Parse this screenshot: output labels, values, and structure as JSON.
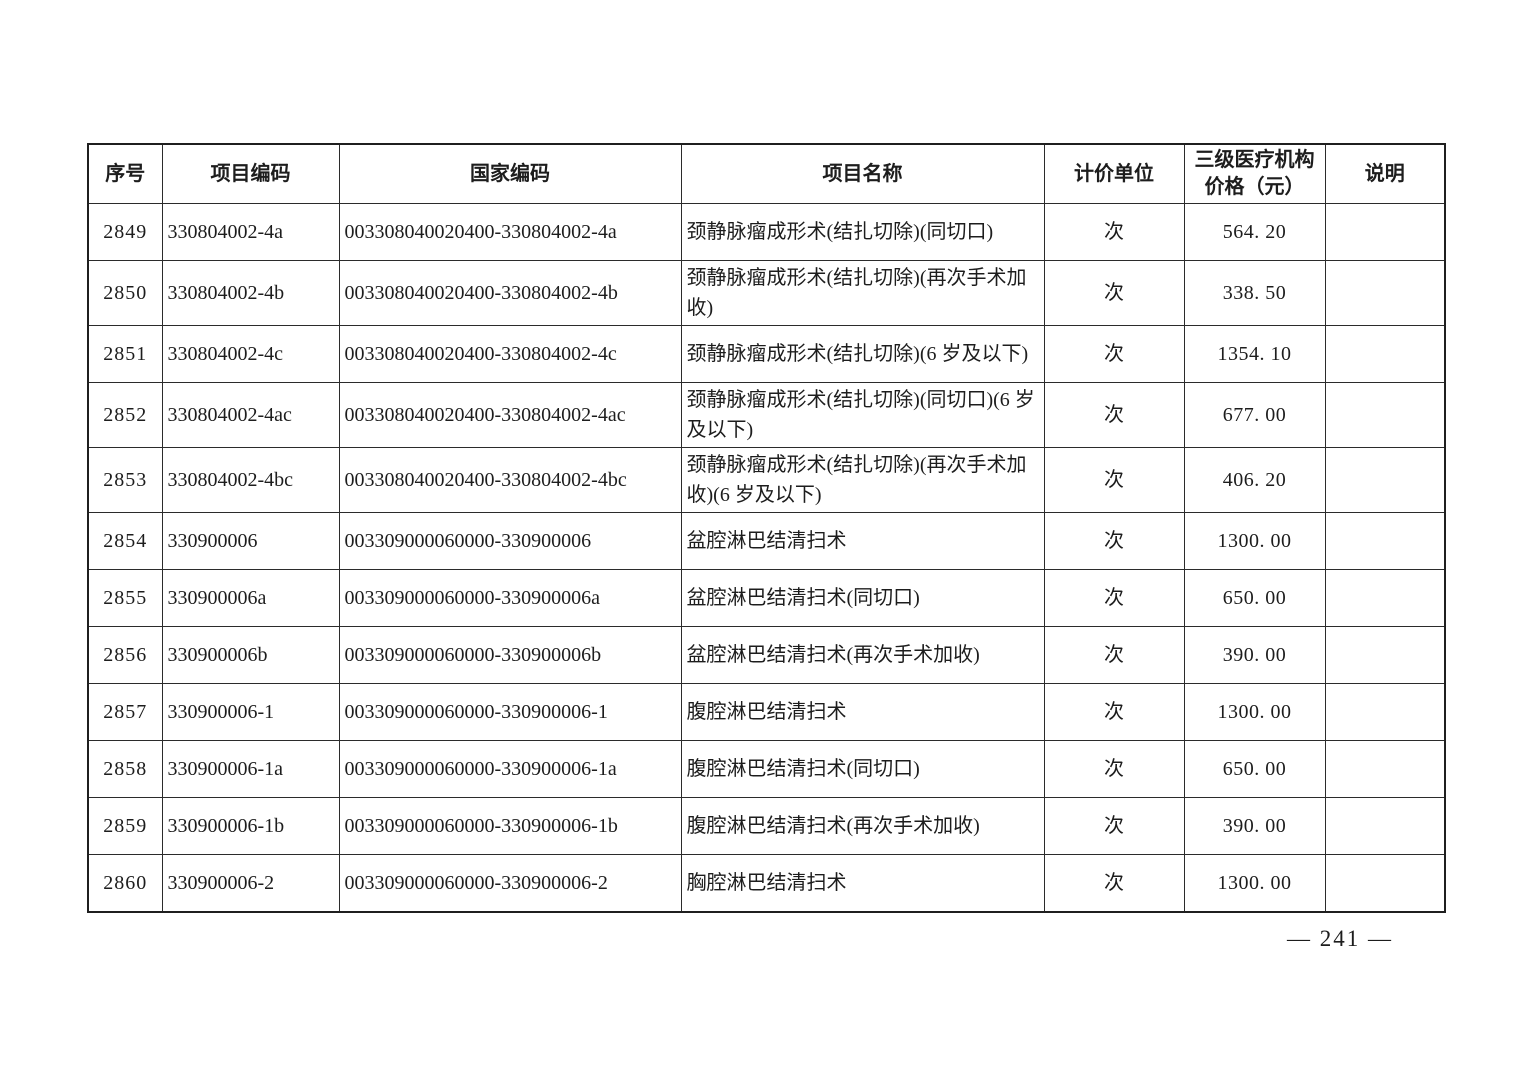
{
  "page": {
    "background_color": "#ffffff",
    "text_color": "#1d1d1d",
    "border_color": "#2b2b2b",
    "page_number": "— 241 —"
  },
  "table": {
    "headers": [
      "序号",
      "项目编码",
      "国家编码",
      "项目名称",
      "计价单位",
      "三级医疗机构价格（元）",
      "说明"
    ],
    "rows": [
      {
        "serial": "2849",
        "project_code": "330804002-4a",
        "national_code": "003308040020400-330804002-4a",
        "project_name": "颈静脉瘤成形术(结扎切除)(同切口)",
        "unit": "次",
        "price": "564. 20",
        "note": ""
      },
      {
        "serial": "2850",
        "project_code": "330804002-4b",
        "national_code": "003308040020400-330804002-4b",
        "project_name": "颈静脉瘤成形术(结扎切除)(再次手术加收)",
        "unit": "次",
        "price": "338. 50",
        "note": ""
      },
      {
        "serial": "2851",
        "project_code": "330804002-4c",
        "national_code": "003308040020400-330804002-4c",
        "project_name": "颈静脉瘤成形术(结扎切除)(6 岁及以下)",
        "unit": "次",
        "price": "1354. 10",
        "note": ""
      },
      {
        "serial": "2852",
        "project_code": "330804002-4ac",
        "national_code": "003308040020400-330804002-4ac",
        "project_name": "颈静脉瘤成形术(结扎切除)(同切口)(6 岁及以下)",
        "unit": "次",
        "price": "677. 00",
        "note": ""
      },
      {
        "serial": "2853",
        "project_code": "330804002-4bc",
        "national_code": "003308040020400-330804002-4bc",
        "project_name": "颈静脉瘤成形术(结扎切除)(再次手术加收)(6 岁及以下)",
        "unit": "次",
        "price": "406. 20",
        "note": ""
      },
      {
        "serial": "2854",
        "project_code": "330900006",
        "national_code": "003309000060000-330900006",
        "project_name": "盆腔淋巴结清扫术",
        "unit": "次",
        "price": "1300. 00",
        "note": ""
      },
      {
        "serial": "2855",
        "project_code": "330900006a",
        "national_code": "003309000060000-330900006a",
        "project_name": "盆腔淋巴结清扫术(同切口)",
        "unit": "次",
        "price": "650. 00",
        "note": ""
      },
      {
        "serial": "2856",
        "project_code": "330900006b",
        "national_code": "003309000060000-330900006b",
        "project_name": "盆腔淋巴结清扫术(再次手术加收)",
        "unit": "次",
        "price": "390. 00",
        "note": ""
      },
      {
        "serial": "2857",
        "project_code": "330900006-1",
        "national_code": "003309000060000-330900006-1",
        "project_name": "腹腔淋巴结清扫术",
        "unit": "次",
        "price": "1300. 00",
        "note": ""
      },
      {
        "serial": "2858",
        "project_code": "330900006-1a",
        "national_code": "003309000060000-330900006-1a",
        "project_name": "腹腔淋巴结清扫术(同切口)",
        "unit": "次",
        "price": "650. 00",
        "note": ""
      },
      {
        "serial": "2859",
        "project_code": "330900006-1b",
        "national_code": "003309000060000-330900006-1b",
        "project_name": "腹腔淋巴结清扫术(再次手术加收)",
        "unit": "次",
        "price": "390. 00",
        "note": ""
      },
      {
        "serial": "2860",
        "project_code": "330900006-2",
        "national_code": "003309000060000-330900006-2",
        "project_name": "胸腔淋巴结清扫术",
        "unit": "次",
        "price": "1300. 00",
        "note": ""
      }
    ]
  }
}
